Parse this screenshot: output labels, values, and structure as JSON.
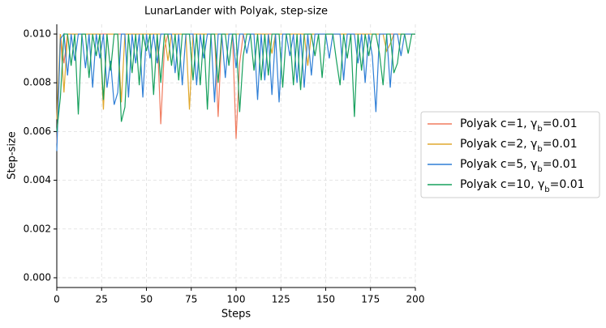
{
  "chart_data": {
    "type": "line",
    "title": "LunarLander with Polyak, step-size",
    "xlabel": "Steps",
    "ylabel": "Step-size",
    "x": [
      0,
      2,
      4,
      6,
      8,
      10,
      12,
      14,
      16,
      18,
      20,
      22,
      24,
      26,
      28,
      30,
      32,
      34,
      36,
      38,
      40,
      42,
      44,
      46,
      48,
      50,
      52,
      54,
      56,
      58,
      60,
      62,
      64,
      66,
      68,
      70,
      72,
      74,
      76,
      78,
      80,
      82,
      84,
      86,
      88,
      90,
      92,
      94,
      96,
      98,
      100,
      102,
      104,
      106,
      108,
      110,
      112,
      114,
      116,
      118,
      120,
      122,
      124,
      126,
      128,
      130,
      132,
      134,
      136,
      138,
      140,
      142,
      144,
      146,
      148,
      150,
      152,
      154,
      156,
      158,
      160,
      162,
      164,
      166,
      168,
      170,
      172,
      174,
      176,
      178,
      180,
      182,
      184,
      186,
      188,
      190,
      192,
      194,
      196,
      198,
      200
    ],
    "series": [
      {
        "name": "Polyak c=1, γb=0.01",
        "color": "#f07c5f",
        "values": [
          0.0055,
          0.01,
          0.0088,
          0.01,
          0.01,
          0.01,
          0.01,
          0.01,
          0.01,
          0.01,
          0.01,
          0.01,
          0.01,
          0.01,
          0.01,
          0.01,
          0.01,
          0.01,
          0.01,
          0.01,
          0.01,
          0.01,
          0.01,
          0.01,
          0.01,
          0.01,
          0.01,
          0.01,
          0.01,
          0.0063,
          0.0094,
          0.01,
          0.01,
          0.01,
          0.01,
          0.01,
          0.01,
          0.01,
          0.01,
          0.01,
          0.01,
          0.01,
          0.01,
          0.01,
          0.01,
          0.0066,
          0.01,
          0.01,
          0.01,
          0.01,
          0.0057,
          0.0088,
          0.01,
          0.01,
          0.01,
          0.01,
          0.01,
          0.01,
          0.01,
          0.01,
          0.01,
          0.01,
          0.01,
          0.01,
          0.01,
          0.01,
          0.01,
          0.01,
          0.01,
          0.01,
          0.01,
          0.01,
          0.01,
          0.01,
          0.01,
          0.01,
          0.01,
          0.01,
          0.01,
          0.01,
          0.01,
          0.01,
          0.01,
          0.01,
          0.01,
          0.01,
          0.01,
          0.01,
          0.01,
          0.01,
          0.01,
          0.01,
          0.01,
          0.01,
          0.01,
          0.01,
          0.01,
          0.01,
          0.01,
          0.01,
          0.01
        ]
      },
      {
        "name": "Polyak c=2, γb=0.01",
        "color": "#e0a82e",
        "values": [
          0.0065,
          0.01,
          0.0076,
          0.01,
          0.01,
          0.01,
          0.01,
          0.01,
          0.01,
          0.01,
          0.01,
          0.01,
          0.01,
          0.0069,
          0.01,
          0.01,
          0.01,
          0.01,
          0.0072,
          0.01,
          0.01,
          0.01,
          0.01,
          0.01,
          0.01,
          0.01,
          0.01,
          0.01,
          0.01,
          0.01,
          0.01,
          0.0089,
          0.01,
          0.01,
          0.01,
          0.01,
          0.01,
          0.0069,
          0.01,
          0.01,
          0.01,
          0.01,
          0.01,
          0.01,
          0.01,
          0.01,
          0.01,
          0.01,
          0.01,
          0.01,
          0.01,
          0.01,
          0.01,
          0.01,
          0.01,
          0.01,
          0.01,
          0.01,
          0.01,
          0.01,
          0.0092,
          0.01,
          0.01,
          0.01,
          0.01,
          0.01,
          0.01,
          0.01,
          0.01,
          0.01,
          0.0087,
          0.01,
          0.01,
          0.01,
          0.01,
          0.01,
          0.01,
          0.01,
          0.01,
          0.01,
          0.01,
          0.01,
          0.01,
          0.01,
          0.01,
          0.01,
          0.01,
          0.01,
          0.01,
          0.01,
          0.01,
          0.01,
          0.0093,
          0.0096,
          0.01,
          0.01,
          0.01,
          0.01,
          0.01,
          0.01,
          0.01
        ]
      },
      {
        "name": "Polyak c=5, γb=0.01",
        "color": "#2f7fd6",
        "values": [
          0.0052,
          0.0098,
          0.01,
          0.0083,
          0.01,
          0.0089,
          0.01,
          0.01,
          0.0086,
          0.01,
          0.0078,
          0.01,
          0.009,
          0.01,
          0.0078,
          0.0089,
          0.0071,
          0.0076,
          0.01,
          0.01,
          0.0074,
          0.01,
          0.0088,
          0.01,
          0.0074,
          0.01,
          0.009,
          0.01,
          0.0088,
          0.01,
          0.01,
          0.01,
          0.01,
          0.0084,
          0.01,
          0.0079,
          0.01,
          0.01,
          0.01,
          0.0079,
          0.01,
          0.009,
          0.01,
          0.01,
          0.0072,
          0.01,
          0.01,
          0.0082,
          0.01,
          0.01,
          0.0086,
          0.01,
          0.01,
          0.0092,
          0.01,
          0.01,
          0.0073,
          0.01,
          0.0081,
          0.01,
          0.0075,
          0.01,
          0.0072,
          0.01,
          0.01,
          0.0091,
          0.01,
          0.008,
          0.01,
          0.0078,
          0.01,
          0.0083,
          0.01,
          0.01,
          0.01,
          0.01,
          0.009,
          0.01,
          0.01,
          0.01,
          0.0081,
          0.01,
          0.01,
          0.01,
          0.0088,
          0.01,
          0.008,
          0.01,
          0.0091,
          0.0068,
          0.01,
          0.01,
          0.01,
          0.0078,
          0.01,
          0.01,
          0.0091,
          0.01,
          0.01,
          0.01,
          0.01
        ]
      },
      {
        "name": "Polyak c=10, γb=0.01",
        "color": "#17a05d",
        "values": [
          0.006,
          0.0074,
          0.01,
          0.01,
          0.0087,
          0.01,
          0.0067,
          0.01,
          0.01,
          0.0082,
          0.01,
          0.0091,
          0.01,
          0.0073,
          0.01,
          0.0085,
          0.01,
          0.01,
          0.0064,
          0.007,
          0.01,
          0.0084,
          0.01,
          0.0079,
          0.01,
          0.0093,
          0.01,
          0.0075,
          0.01,
          0.008,
          0.01,
          0.01,
          0.0087,
          0.01,
          0.0081,
          0.01,
          0.01,
          0.01,
          0.0081,
          0.01,
          0.0079,
          0.01,
          0.0069,
          0.01,
          0.01,
          0.008,
          0.01,
          0.01,
          0.0087,
          0.01,
          0.01,
          0.0068,
          0.0091,
          0.01,
          0.01,
          0.0085,
          0.01,
          0.0081,
          0.01,
          0.0083,
          0.01,
          0.01,
          0.01,
          0.0078,
          0.01,
          0.01,
          0.0079,
          0.01,
          0.0077,
          0.01,
          0.01,
          0.01,
          0.0091,
          0.01,
          0.0082,
          0.01,
          0.01,
          0.01,
          0.0089,
          0.0079,
          0.01,
          0.009,
          0.01,
          0.0066,
          0.01,
          0.0085,
          0.01,
          0.0091,
          0.01,
          0.01,
          0.0092,
          0.0079,
          0.01,
          0.01,
          0.0084,
          0.0088,
          0.01,
          0.01,
          0.0092,
          0.01,
          0.01
        ]
      }
    ],
    "xlim": [
      0,
      200
    ],
    "xticks": [
      0,
      25,
      50,
      75,
      100,
      125,
      150,
      175,
      200
    ],
    "ylim": [
      -0.0004,
      0.0104
    ],
    "yticks": [
      {
        "value": 0,
        "label": "0.000"
      },
      {
        "value": 0.002,
        "label": "0.002"
      },
      {
        "value": 0.004,
        "label": "0.004"
      },
      {
        "value": 0.006,
        "label": "0.006"
      },
      {
        "value": 0.008,
        "label": "0.008"
      },
      {
        "value": 0.01,
        "label": "0.010"
      }
    ],
    "grid": true,
    "legend": "outside right"
  }
}
